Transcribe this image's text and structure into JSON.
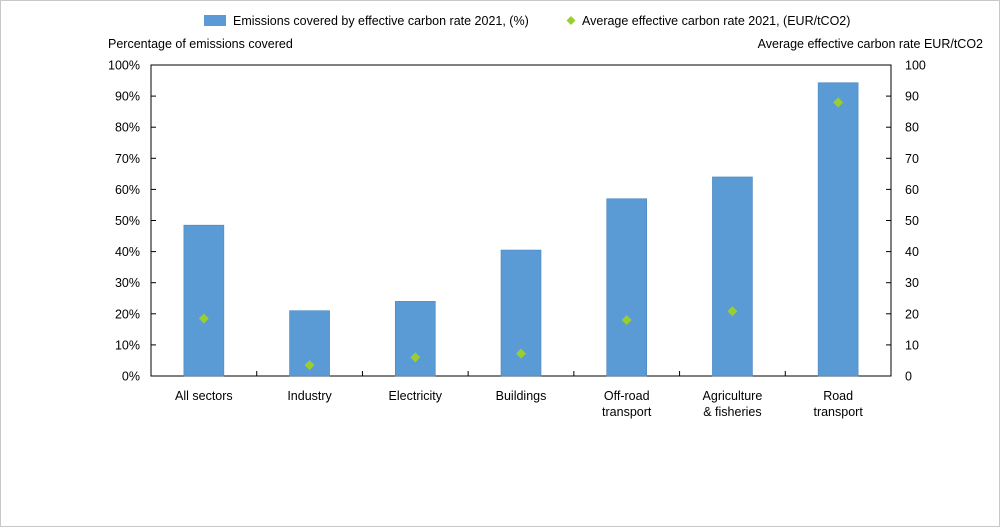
{
  "chart_data": {
    "type": "bar",
    "title": "",
    "legend": [
      {
        "label": "Emissions covered by effective carbon rate 2021, (%)",
        "marker": "bar",
        "color": "#5b9bd5"
      },
      {
        "label": "Average effective carbon rate 2021, (EUR/tCO2)",
        "marker": "diamond",
        "color": "#9acd32"
      }
    ],
    "left_axis_title": "Percentage of emissions covered",
    "right_axis_title": "Average effective carbon rate EUR/tCO2",
    "categories": [
      [
        "All sectors"
      ],
      [
        "Industry"
      ],
      [
        "Electricity"
      ],
      [
        "Buildings"
      ],
      [
        "Off-road",
        "transport"
      ],
      [
        "Agriculture",
        "& fisheries"
      ],
      [
        "Road",
        "transport"
      ]
    ],
    "series": [
      {
        "name": "Emissions covered by effective carbon rate 2021, (%)",
        "type": "bar",
        "axis": "left",
        "color": "#5b9bd5",
        "values": [
          48.5,
          21,
          24,
          40.5,
          57,
          64,
          94.3
        ]
      },
      {
        "name": "Average effective carbon rate 2021, (EUR/tCO2)",
        "type": "scatter",
        "axis": "right",
        "color": "#9acd32",
        "values": [
          18.5,
          3.5,
          6,
          7.2,
          18,
          20.8,
          88
        ]
      }
    ],
    "left_axis": {
      "min": 0,
      "max": 100,
      "ticks": [
        "0%",
        "10%",
        "20%",
        "30%",
        "40%",
        "50%",
        "60%",
        "70%",
        "80%",
        "90%",
        "100%"
      ]
    },
    "right_axis": {
      "min": 0,
      "max": 100,
      "ticks": [
        "0",
        "10",
        "20",
        "30",
        "40",
        "50",
        "60",
        "70",
        "80",
        "90",
        "100"
      ]
    },
    "grid": false
  }
}
